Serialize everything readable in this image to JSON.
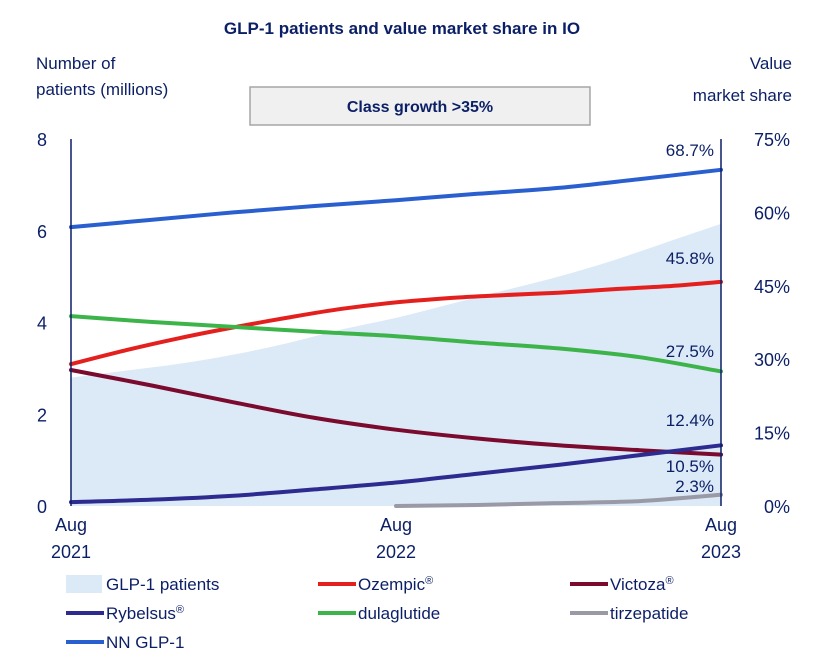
{
  "chart_data": {
    "type": "line",
    "title": "GLP-1 patients and value market share in IO",
    "left_axis_label": [
      "Number of",
      "patients (millions)"
    ],
    "right_axis_label": [
      "Value",
      "market share"
    ],
    "callout": "Class growth >35%",
    "left_axis": {
      "ylim": [
        0,
        8
      ],
      "ticks": [
        "0",
        "2",
        "4",
        "6",
        "8"
      ],
      "tick_values": [
        0,
        2,
        4,
        6,
        8
      ]
    },
    "right_axis": {
      "ylim": [
        0,
        75
      ],
      "ticks": [
        "0%",
        "15%",
        "30%",
        "45%",
        "60%",
        "75%"
      ],
      "tick_values": [
        0,
        15,
        30,
        45,
        60,
        75
      ]
    },
    "x_axis": {
      "range": [
        0,
        24
      ],
      "ticks": [
        {
          "value": 0,
          "line1": "Aug",
          "line2": "2021"
        },
        {
          "value": 12,
          "line1": "Aug",
          "line2": "2022"
        },
        {
          "value": 24,
          "line1": "Aug",
          "line2": "2023"
        }
      ]
    },
    "area": {
      "name": "GLP-1 patients",
      "color": "#dce9f7",
      "axis": "left",
      "x": [
        0,
        2,
        4,
        6,
        8,
        10,
        12,
        14,
        16,
        18,
        20,
        22,
        24
      ],
      "y": [
        2.8,
        2.95,
        3.1,
        3.3,
        3.55,
        3.85,
        4.1,
        4.4,
        4.7,
        5.0,
        5.35,
        5.75,
        6.15
      ]
    },
    "series": [
      {
        "name": "NN GLP-1",
        "color": "#2a5fcf",
        "axis": "right",
        "x": [
          0,
          3,
          6,
          9,
          12,
          15,
          18,
          21,
          24
        ],
        "y": [
          57.0,
          58.5,
          60.0,
          61.3,
          62.5,
          63.8,
          65.0,
          66.8,
          68.7
        ],
        "end_label": "68.7%"
      },
      {
        "name": "Ozempic",
        "sup": "®",
        "color": "#e4201e",
        "axis": "right",
        "x": [
          0,
          2,
          4,
          6,
          8,
          10,
          12,
          14,
          16,
          18,
          20,
          22,
          24
        ],
        "y": [
          29.0,
          31.8,
          34.3,
          36.5,
          38.5,
          40.3,
          41.6,
          42.5,
          43.1,
          43.6,
          44.3,
          44.9,
          45.8
        ],
        "end_label": "45.8%"
      },
      {
        "name": "dulaglutide",
        "color": "#3cb44a",
        "axis": "right",
        "x": [
          0,
          3,
          6,
          9,
          12,
          15,
          18,
          21,
          24
        ],
        "y": [
          38.8,
          37.6,
          36.6,
          35.6,
          34.7,
          33.4,
          32.2,
          30.4,
          27.5
        ],
        "end_label": "27.5%"
      },
      {
        "name": "Victoza",
        "sup": "®",
        "color": "#7a0a2e",
        "axis": "right",
        "x": [
          0,
          3,
          6,
          9,
          12,
          15,
          18,
          21,
          24
        ],
        "y": [
          27.8,
          24.6,
          21.2,
          18.0,
          15.6,
          13.8,
          12.4,
          11.4,
          10.5
        ],
        "end_label": "10.5%"
      },
      {
        "name": "Rybelsus",
        "sup": "®",
        "color": "#2d2b8f",
        "axis": "right",
        "x": [
          0,
          3,
          6,
          9,
          12,
          15,
          18,
          21,
          24
        ],
        "y": [
          0.8,
          1.3,
          2.1,
          3.4,
          4.8,
          6.6,
          8.4,
          10.4,
          12.4
        ],
        "end_label": "12.4%"
      },
      {
        "name": "tirzepatide",
        "color": "#9a9aa6",
        "axis": "right",
        "x": [
          12,
          15,
          18,
          21,
          24
        ],
        "y": [
          0.0,
          0.2,
          0.6,
          1.0,
          2.3
        ],
        "end_label": "2.3%"
      }
    ],
    "legend": [
      {
        "name": "GLP-1 patients",
        "kind": "area",
        "color": "#dce9f7"
      },
      {
        "name": "Ozempic",
        "sup": "®",
        "kind": "line",
        "color": "#e4201e"
      },
      {
        "name": "Victoza",
        "sup": "®",
        "kind": "line",
        "color": "#7a0a2e"
      },
      {
        "name": "Rybelsus",
        "sup": "®",
        "kind": "line",
        "color": "#2d2b8f"
      },
      {
        "name": "dulaglutide",
        "kind": "line",
        "color": "#3cb44a"
      },
      {
        "name": "tirzepatide",
        "kind": "line",
        "color": "#9a9aa6"
      },
      {
        "name": "NN GLP-1",
        "kind": "line",
        "color": "#2a5fcf"
      }
    ],
    "legend_placement": "bottom",
    "grid": false
  }
}
